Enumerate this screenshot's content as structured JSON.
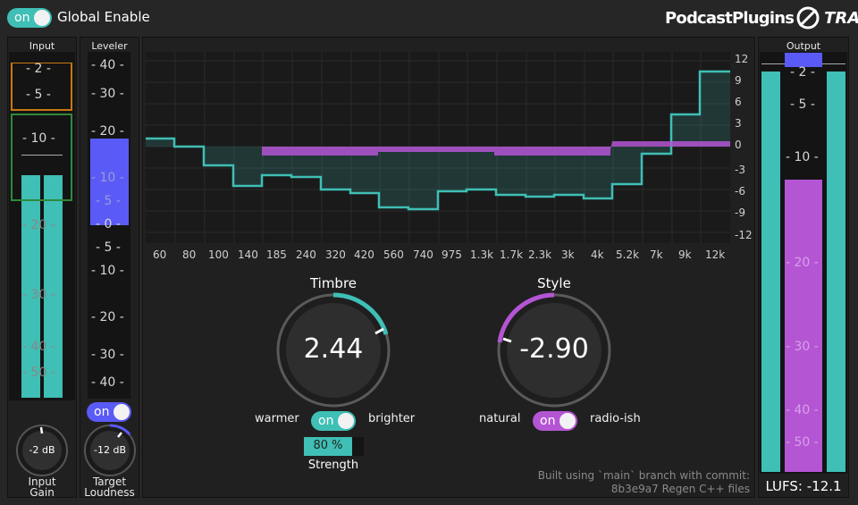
{
  "header": {
    "global_toggle": "on",
    "global_label": "Global Enable",
    "brand_left": "PodcastPlugins",
    "brand_right": "TRACK"
  },
  "input_panel": {
    "title": "Input",
    "scale": [
      "- 2 -",
      "- 5 -",
      "- 10 -",
      "- 20 -",
      "- 30 -",
      "- 40 -",
      "- 50 -"
    ],
    "level_fraction": 0.67,
    "knob_value": "-2 dB",
    "knob_label_1": "Input",
    "knob_label_2": "Gain"
  },
  "leveler_panel": {
    "title": "Leveler",
    "scale": [
      "- 40 -",
      "- 30 -",
      "- 20 -",
      "- 10 -",
      "- 5 -",
      "- 0 -",
      "- 5 -",
      "- 10 -",
      "- 20 -",
      "- 30 -",
      "- 40 -"
    ],
    "toggle": "on",
    "knob_value": "-12 dB",
    "knob_label_1": "Target",
    "knob_label_2": "Loudness"
  },
  "eq": {
    "freq_labels": [
      "60",
      "80",
      "100",
      "140",
      "185",
      "240",
      "320",
      "420",
      "560",
      "740",
      "975",
      "1.3k",
      "1.7k",
      "2.3k",
      "3k",
      "4k",
      "5.2k",
      "7k",
      "9k",
      "12k"
    ],
    "db_labels": [
      "12",
      "9",
      "6",
      "3",
      "0",
      "-3",
      "-6",
      "-9",
      "-12"
    ],
    "colors": {
      "teal": "#3fbfb5",
      "purple": "#b455d4"
    }
  },
  "timbre": {
    "title": "Timbre",
    "value": "2.44",
    "left_word": "warmer",
    "right_word": "brighter",
    "toggle": "on",
    "strength_value": "80 %",
    "strength_fraction": 0.8,
    "strength_label": "Strength"
  },
  "style": {
    "title": "Style",
    "value": "-2.90",
    "left_word": "natural",
    "right_word": "radio-ish",
    "toggle": "on"
  },
  "build_info": {
    "line1": "Built using `main` branch with commit:",
    "line2": "8b3e9a7 Regen C++ files"
  },
  "output_panel": {
    "title": "Output",
    "scale": [
      "- 2 -",
      "- 5 -",
      "- 10 -",
      "- 20 -",
      "- 30 -",
      "- 40 -",
      "- 50 -"
    ],
    "lufs_text": "LUFS: -12.1"
  }
}
